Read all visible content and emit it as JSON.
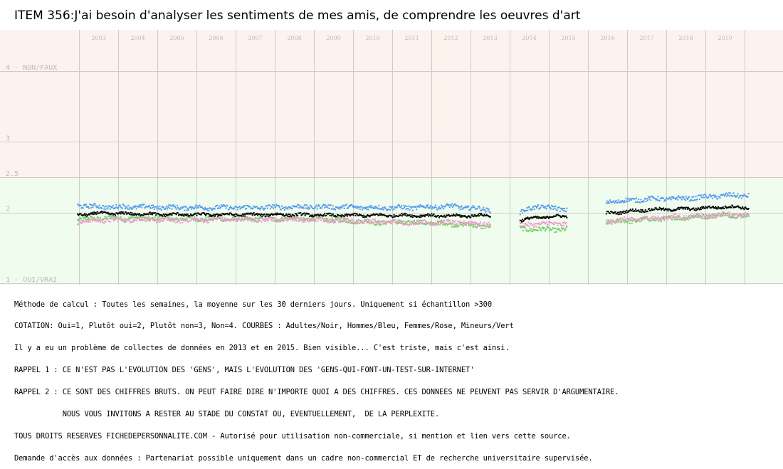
{
  "title": "ITEM 356:J'ai besoin d'analyser les sentiments de mes amis, de comprendre les oeuvres d'art",
  "colors": {
    "band_high": "#fdf3ee",
    "band_low": "#effcee",
    "grid": "#cccccc",
    "axis_text": "#bbbbbb",
    "black_series": "#000000",
    "blue_series": "#5599ee",
    "pink_series": "#ee99cc",
    "green_series": "#77cc66"
  },
  "chart_data": {
    "type": "scatter",
    "x_axis": {
      "labels": [
        "2003",
        "2004",
        "2005",
        "2006",
        "2007",
        "2008",
        "2009",
        "2010",
        "2011",
        "2012",
        "2013",
        "2014",
        "2015",
        "2016",
        "2017",
        "2018",
        "2019"
      ],
      "range": [
        2002.5,
        2020.5
      ]
    },
    "y_axis": {
      "ticks": [
        {
          "value": 4,
          "label": "4 - NON/FAUX"
        },
        {
          "value": 3,
          "label": "3"
        },
        {
          "value": 2.5,
          "label": "2.5"
        },
        {
          "value": 2,
          "label": "2"
        },
        {
          "value": 1,
          "label": "1 - OUI/VRAI"
        }
      ],
      "range": [
        1,
        4
      ],
      "inverted": true
    },
    "bands": [
      {
        "from": 2.5,
        "to": 4,
        "color_key": "band_high"
      },
      {
        "from": 1,
        "to": 2.5,
        "color_key": "band_low"
      }
    ],
    "grid": true,
    "segments": [
      {
        "from": 2002.45,
        "to": 2013.0
      },
      {
        "from": 2013.75,
        "to": 2014.95
      },
      {
        "from": 2015.95,
        "to": 2019.6
      }
    ],
    "series": [
      {
        "color_key": "black_series",
        "points": [
          [
            2002.5,
            1.97
          ],
          [
            2003.0,
            1.99
          ],
          [
            2004.0,
            1.98
          ],
          [
            2005.0,
            1.97
          ],
          [
            2006.0,
            1.97
          ],
          [
            2007.0,
            1.97
          ],
          [
            2008.0,
            1.97
          ],
          [
            2009.0,
            1.96
          ],
          [
            2010.0,
            1.96
          ],
          [
            2011.0,
            1.96
          ],
          [
            2012.0,
            1.95
          ],
          [
            2012.95,
            1.96
          ],
          [
            2013.75,
            1.89
          ],
          [
            2014.2,
            1.93
          ],
          [
            2014.9,
            1.95
          ],
          [
            2016.0,
            1.99
          ],
          [
            2017.0,
            2.04
          ],
          [
            2018.0,
            2.05
          ],
          [
            2019.0,
            2.08
          ],
          [
            2019.55,
            2.07
          ]
        ]
      },
      {
        "color_key": "blue_series",
        "points": [
          [
            2002.5,
            2.1
          ],
          [
            2003.0,
            2.08
          ],
          [
            2004.0,
            2.08
          ],
          [
            2005.0,
            2.07
          ],
          [
            2006.0,
            2.07
          ],
          [
            2007.0,
            2.07
          ],
          [
            2008.0,
            2.08
          ],
          [
            2009.0,
            2.08
          ],
          [
            2010.0,
            2.07
          ],
          [
            2011.0,
            2.07
          ],
          [
            2012.0,
            2.09
          ],
          [
            2013.75,
            2.0
          ],
          [
            2014.2,
            2.09
          ],
          [
            2014.9,
            2.04
          ],
          [
            2016.0,
            2.15
          ],
          [
            2017.0,
            2.19
          ],
          [
            2018.0,
            2.2
          ],
          [
            2019.0,
            2.24
          ],
          [
            2019.55,
            2.24
          ]
        ]
      },
      {
        "color_key": "pink_series",
        "points": [
          [
            2002.5,
            1.87
          ],
          [
            2003.0,
            1.89
          ],
          [
            2004.0,
            1.9
          ],
          [
            2005.0,
            1.89
          ],
          [
            2006.0,
            1.9
          ],
          [
            2007.0,
            1.9
          ],
          [
            2008.0,
            1.9
          ],
          [
            2009.0,
            1.89
          ],
          [
            2010.0,
            1.87
          ],
          [
            2011.0,
            1.86
          ],
          [
            2012.0,
            1.86
          ],
          [
            2013.75,
            1.82
          ],
          [
            2014.2,
            1.84
          ],
          [
            2014.9,
            1.84
          ],
          [
            2016.0,
            1.88
          ],
          [
            2017.0,
            1.92
          ],
          [
            2018.0,
            1.94
          ],
          [
            2019.0,
            1.97
          ],
          [
            2019.55,
            1.96
          ]
        ]
      },
      {
        "color_key": "green_series",
        "points": [
          [
            2002.5,
            1.9
          ],
          [
            2003.0,
            1.92
          ],
          [
            2004.0,
            1.92
          ],
          [
            2005.0,
            1.91
          ],
          [
            2006.0,
            1.91
          ],
          [
            2007.0,
            1.91
          ],
          [
            2008.0,
            1.91
          ],
          [
            2009.0,
            1.9
          ],
          [
            2010.0,
            1.86
          ],
          [
            2011.0,
            1.86
          ],
          [
            2012.0,
            1.84
          ],
          [
            2013.75,
            1.77
          ],
          [
            2014.2,
            1.76
          ],
          [
            2014.9,
            1.76
          ],
          [
            2016.0,
            1.86
          ],
          [
            2017.0,
            1.9
          ],
          [
            2018.0,
            1.93
          ],
          [
            2019.0,
            1.97
          ],
          [
            2019.55,
            1.95
          ]
        ]
      }
    ]
  },
  "notes": [
    "Méthode de calcul : Toutes les semaines, la moyenne sur les 30 derniers jours. Uniquement si échantillon >300",
    "COTATION: Oui=1, Plutôt oui=2, Plutôt non=3, Non=4. COURBES : Adultes/Noir, Hommes/Bleu, Femmes/Rose, Mineurs/Vert",
    "Il y a eu un problème de collectes de données en 2013 et en 2015. Bien visible... C'est triste, mais c'est ainsi.",
    "RAPPEL 1 : CE N'EST PAS L'EVOLUTION DES 'GENS', MAIS L'EVOLUTION DES 'GENS-QUI-FONT-UN-TEST-SUR-INTERNET'",
    "RAPPEL 2 : CE SONT DES CHIFFRES BRUTS. ON PEUT FAIRE DIRE N'IMPORTE QUOI A DES CHIFFRES. CES DONNEES NE PEUVENT PAS SERVIR D'ARGUMENTAIRE.",
    "           NOUS VOUS INVITONS A RESTER AU STADE DU CONSTAT OU, EVENTUELLEMENT,  DE LA PERPLEXITE.",
    "TOUS DROITS RESERVES FICHEDEPERSONNALITE.COM - Autorisé pour utilisation non-commerciale, si mention et lien vers cette source.",
    "Demande d'accès aux données : Partenariat possible uniquement dans un cadre non-commercial ET de recherche universitaire supervisée."
  ]
}
